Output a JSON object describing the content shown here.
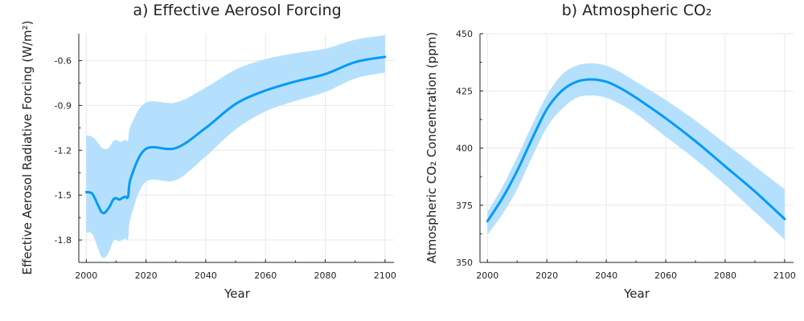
{
  "chart_data": [
    {
      "type": "line",
      "title": "a) Effective Aerosol Forcing",
      "xlabel": "Year",
      "ylabel": "Effective Aerosol Radiative Forcing (W/m²)",
      "xlim": [
        1997.5,
        2103
      ],
      "ylim": [
        -1.95,
        -0.42
      ],
      "xticks": [
        2000,
        2020,
        2040,
        2060,
        2080,
        2100
      ],
      "yticks": [
        -1.8,
        -1.5,
        -1.2,
        -0.9,
        -0.6
      ],
      "ytick_labels": [
        "-1.8",
        "-1.5",
        "-1.2",
        "-0.9",
        "-0.6"
      ],
      "grid": true,
      "line_color": "#009af9",
      "band_color": "#b5e0fd",
      "series": [
        {
          "x": [
            2000,
            2002,
            2004,
            2005,
            2006,
            2007,
            2008,
            2009,
            2010,
            2011,
            2012,
            2013,
            2014,
            2015,
            2020,
            2030,
            2040,
            2050,
            2060,
            2070,
            2080,
            2090,
            2100
          ],
          "y": [
            -1.48,
            -1.49,
            -1.57,
            -1.61,
            -1.62,
            -1.6,
            -1.57,
            -1.53,
            -1.52,
            -1.53,
            -1.52,
            -1.51,
            -1.51,
            -1.38,
            -1.19,
            -1.185,
            -1.05,
            -0.89,
            -0.8,
            -0.74,
            -0.69,
            -0.61,
            -0.575
          ],
          "lower": [
            -1.75,
            -1.76,
            -1.86,
            -1.91,
            -1.92,
            -1.9,
            -1.86,
            -1.81,
            -1.8,
            -1.81,
            -1.8,
            -1.79,
            -1.79,
            -1.64,
            -1.41,
            -1.4,
            -1.24,
            -1.06,
            -0.94,
            -0.87,
            -0.81,
            -0.72,
            -0.68
          ],
          "upper": [
            -1.1,
            -1.11,
            -1.15,
            -1.18,
            -1.19,
            -1.19,
            -1.17,
            -1.14,
            -1.13,
            -1.14,
            -1.14,
            -1.13,
            -1.13,
            -1.03,
            -0.88,
            -0.88,
            -0.78,
            -0.66,
            -0.59,
            -0.55,
            -0.52,
            -0.46,
            -0.43
          ]
        }
      ]
    },
    {
      "type": "line",
      "title": "b) Atmospheric CO₂",
      "xlabel": "Year",
      "ylabel": "Atmospheric CO₂ Concentration (ppm)",
      "xlim": [
        1997.5,
        2103
      ],
      "ylim": [
        350,
        450
      ],
      "xticks": [
        2000,
        2020,
        2040,
        2060,
        2080,
        2100
      ],
      "yticks": [
        350,
        375,
        400,
        425,
        450
      ],
      "ytick_labels": [
        "350",
        "375",
        "400",
        "425",
        "450"
      ],
      "grid": true,
      "line_color": "#009af9",
      "band_color": "#b5e0fd",
      "series": [
        {
          "x": [
            2000,
            2005,
            2010,
            2015,
            2020,
            2025,
            2030,
            2035,
            2040,
            2045,
            2050,
            2060,
            2070,
            2080,
            2090,
            2100
          ],
          "y": [
            368,
            378,
            390,
            404,
            417,
            425,
            429,
            430,
            429,
            426,
            422,
            413,
            403,
            392,
            381,
            369
          ],
          "lower": [
            362,
            371,
            382,
            396,
            409,
            417,
            422,
            423,
            422,
            419,
            415,
            405,
            395,
            384,
            372,
            360
          ],
          "upper": [
            372,
            383,
            396,
            410,
            423,
            432,
            436,
            437,
            436,
            433,
            429,
            421,
            412,
            402,
            392,
            382
          ]
        }
      ]
    }
  ]
}
